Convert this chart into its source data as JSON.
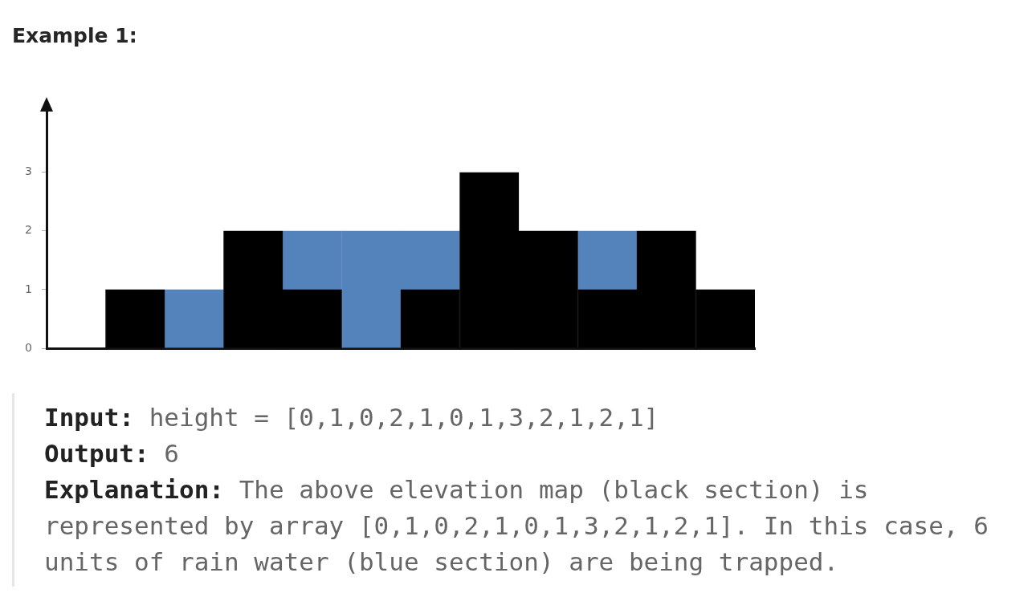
{
  "chart_data": {
    "type": "bar",
    "title": "Example 1:",
    "categories": [
      null,
      null,
      null,
      null,
      null,
      null,
      null,
      null,
      null,
      null,
      null,
      null
    ],
    "series": [
      {
        "color": "#000000",
        "values": [
          0,
          1,
          0,
          2,
          1,
          0,
          1,
          3,
          2,
          1,
          2,
          1
        ]
      },
      {
        "color": "#5482bb",
        "values": [
          0,
          0,
          1,
          0,
          1,
          2,
          1,
          0,
          0,
          1,
          0,
          0
        ]
      }
    ],
    "stacked": true,
    "ylim": [
      0,
      4.2
    ],
    "yticks": [
      0,
      1,
      2,
      3
    ],
    "tick_labels": "y",
    "annotations": [
      "Input: height = [0,1,0,2,1,0,1,3,2,1,2,1]",
      "Output: 6",
      "Explanation: The above elevation map (black section) is represented by array [0,1,0,2,1,0,1,3,2,1,2,1]. In this case, 6 units of rain water (blue section) are being trapped."
    ]
  }
}
